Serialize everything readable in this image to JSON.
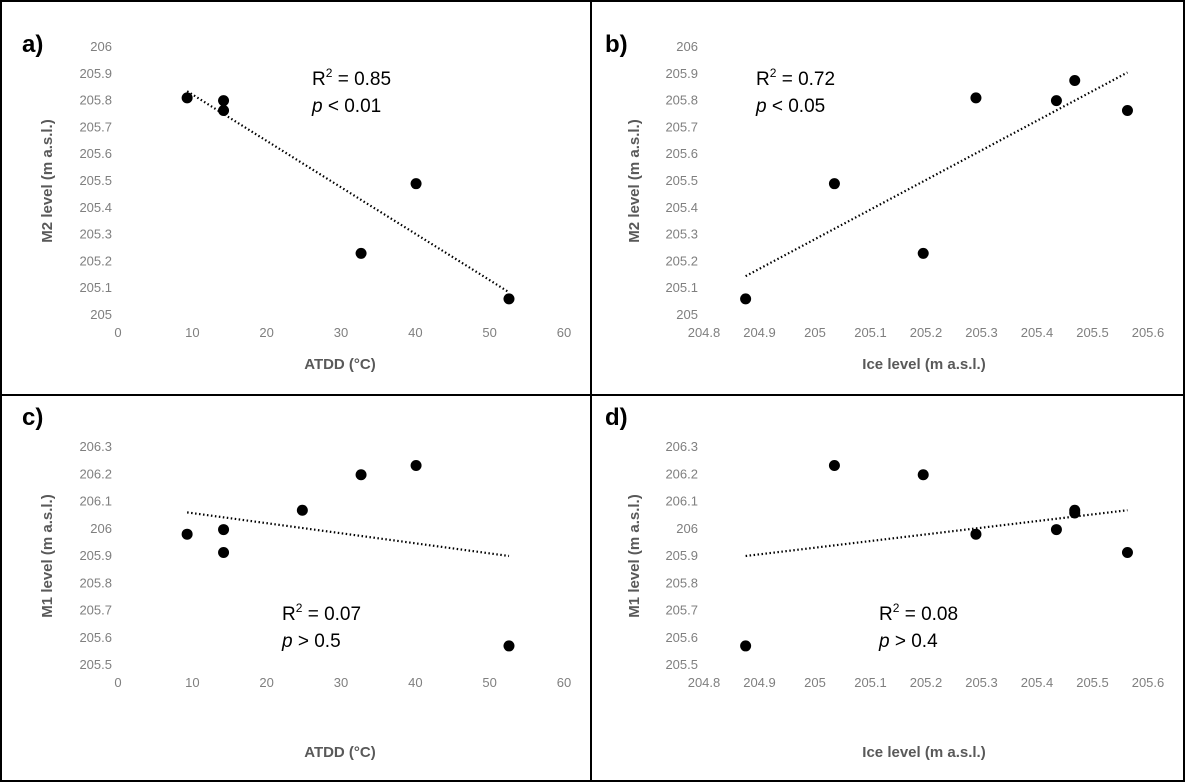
{
  "chart_data": [
    {
      "type": "scatter",
      "panel_label": "a)",
      "xlabel": "ATDD (°C)",
      "ylabel": "M2 level (m a.s.l.)",
      "xlim": [
        0,
        60
      ],
      "ylim": [
        205,
        206
      ],
      "xticks": [
        0,
        10,
        20,
        30,
        40,
        50,
        60
      ],
      "xtick_labels": [
        "0",
        "10",
        "20",
        "30",
        "40",
        "50",
        "60"
      ],
      "yticks": [
        205,
        205.1,
        205.2,
        205.3,
        205.4,
        205.5,
        205.6,
        205.7,
        205.8,
        205.9,
        206
      ],
      "ytick_labels": [
        "205",
        "205.1",
        "205.2",
        "205.3",
        "205.4",
        "205.5",
        "205.6",
        "205.7",
        "205.8",
        "205.9",
        "206"
      ],
      "points": [
        [
          9.3,
          205.81
        ],
        [
          14.2,
          205.8
        ],
        [
          14.2,
          205.763
        ],
        [
          32.7,
          205.23
        ],
        [
          40.1,
          205.49
        ],
        [
          52.6,
          205.06
        ]
      ],
      "trendline": [
        [
          9.3,
          205.835
        ],
        [
          52.6,
          205.085
        ]
      ],
      "stats": {
        "r_prefix": "R",
        "r_sup": "2",
        "r_value": " = 0.85",
        "p_var": "p",
        "p_rest": " < 0.01"
      }
    },
    {
      "type": "scatter",
      "panel_label": "b)",
      "xlabel": "Ice level (m a.s.l.)",
      "ylabel": "M2 level (m a.s.l.)",
      "xlim": [
        204.8,
        205.6
      ],
      "ylim": [
        205,
        206
      ],
      "xticks": [
        204.8,
        204.9,
        205,
        205.1,
        205.2,
        205.3,
        205.4,
        205.5,
        205.6
      ],
      "xtick_labels": [
        "204.8",
        "204.9",
        "205",
        "205.1",
        "205.2",
        "205.3",
        "205.4",
        "205.5",
        "205.6"
      ],
      "yticks": [
        205,
        205.1,
        205.2,
        205.3,
        205.4,
        205.5,
        205.6,
        205.7,
        205.8,
        205.9,
        206
      ],
      "ytick_labels": [
        "205",
        "205.1",
        "205.2",
        "205.3",
        "205.4",
        "205.5",
        "205.6",
        "205.7",
        "205.8",
        "205.9",
        "206"
      ],
      "points": [
        [
          204.875,
          205.06
        ],
        [
          205.035,
          205.49
        ],
        [
          205.195,
          205.23
        ],
        [
          205.29,
          205.81
        ],
        [
          205.435,
          205.8
        ],
        [
          205.468,
          205.875
        ],
        [
          205.563,
          205.763
        ]
      ],
      "trendline": [
        [
          204.875,
          205.145
        ],
        [
          205.563,
          205.905
        ]
      ],
      "stats": {
        "r_prefix": "R",
        "r_sup": "2",
        "r_value": " = 0.72",
        "p_var": "p",
        "p_rest": " < 0.05"
      }
    },
    {
      "type": "scatter",
      "panel_label": "c)",
      "xlabel": "ATDD (°C)",
      "ylabel": "M1 level (m a.s.l.)",
      "xlim": [
        0,
        60
      ],
      "ylim": [
        205.5,
        206.3
      ],
      "xticks": [
        0,
        10,
        20,
        30,
        40,
        50,
        60
      ],
      "xtick_labels": [
        "0",
        "10",
        "20",
        "30",
        "40",
        "50",
        "60"
      ],
      "yticks": [
        205.5,
        205.6,
        205.7,
        205.8,
        205.9,
        206,
        206.1,
        206.2,
        206.3
      ],
      "ytick_labels": [
        "205.5",
        "205.6",
        "205.7",
        "205.8",
        "205.9",
        "206",
        "206.1",
        "206.2",
        "206.3"
      ],
      "points": [
        [
          9.3,
          205.98
        ],
        [
          14.2,
          205.997
        ],
        [
          14.2,
          205.913
        ],
        [
          24.8,
          206.068
        ],
        [
          32.7,
          206.198
        ],
        [
          40.1,
          206.232
        ],
        [
          52.6,
          205.57
        ]
      ],
      "trendline": [
        [
          9.3,
          206.06
        ],
        [
          52.6,
          205.9
        ]
      ],
      "stats": {
        "r_prefix": "R",
        "r_sup": "2",
        "r_value": " = 0.07",
        "p_var": "p",
        "p_rest": " > 0.5"
      }
    },
    {
      "type": "scatter",
      "panel_label": "d)",
      "xlabel": "Ice level (m a.s.l.)",
      "ylabel": "M1 level (m a.s.l.)",
      "xlim": [
        204.8,
        205.6
      ],
      "ylim": [
        205.5,
        206.3
      ],
      "xticks": [
        204.8,
        204.9,
        205,
        205.1,
        205.2,
        205.3,
        205.4,
        205.5,
        205.6
      ],
      "xtick_labels": [
        "204.8",
        "204.9",
        "205",
        "205.1",
        "205.2",
        "205.3",
        "205.4",
        "205.5",
        "205.6"
      ],
      "yticks": [
        205.5,
        205.6,
        205.7,
        205.8,
        205.9,
        206,
        206.1,
        206.2,
        206.3
      ],
      "ytick_labels": [
        "205.5",
        "205.6",
        "205.7",
        "205.8",
        "205.9",
        "206",
        "206.1",
        "206.2",
        "206.3"
      ],
      "points": [
        [
          204.875,
          205.57
        ],
        [
          205.035,
          206.232
        ],
        [
          205.195,
          206.198
        ],
        [
          205.29,
          205.98
        ],
        [
          205.435,
          205.997
        ],
        [
          205.468,
          206.068
        ],
        [
          205.468,
          206.058
        ],
        [
          205.563,
          205.913
        ]
      ],
      "trendline": [
        [
          204.875,
          205.9
        ],
        [
          205.563,
          206.068
        ]
      ],
      "stats": {
        "r_prefix": "R",
        "r_sup": "2",
        "r_value": " = 0.08",
        "p_var": "p",
        "p_rest": " > 0.4"
      }
    }
  ]
}
